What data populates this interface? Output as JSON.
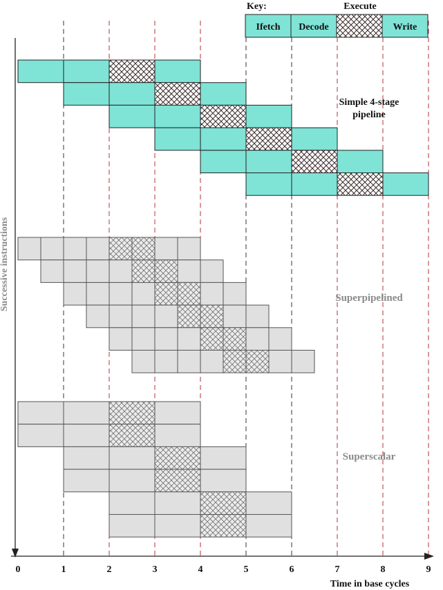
{
  "key": {
    "title": "Key:",
    "execute_label": "Execute",
    "stages": [
      "Ifetch",
      "Decode",
      "",
      "Write"
    ]
  },
  "labels": {
    "simple_line1": "Simple 4-stage",
    "simple_line2": "pipeline",
    "superpipelined": "Superpipelined",
    "superscalar": "Superscalar"
  },
  "axes": {
    "y_label": "Successive instructions",
    "x_label": "Time in base cycles",
    "ticks": [
      "0",
      "1",
      "2",
      "3",
      "4",
      "5",
      "6",
      "7",
      "8",
      "9"
    ]
  },
  "colors": {
    "teal": "#7fe3d6",
    "grey": "#e0e0e0",
    "stroke": "#222222",
    "grey_stroke": "#555555",
    "dash_black": "#333333",
    "dash_red": "#b0303a"
  },
  "pipelines": {
    "simple": {
      "stage_cycles": 1,
      "instructions": [
        {
          "start": 0
        },
        {
          "start": 1
        },
        {
          "start": 2
        },
        {
          "start": 3
        },
        {
          "start": 4
        },
        {
          "start": 5
        }
      ]
    },
    "superpipelined": {
      "stage_cycles": 1,
      "instructions": [
        {
          "start": 0
        },
        {
          "start": 0.5
        },
        {
          "start": 1
        },
        {
          "start": 1.5
        },
        {
          "start": 2
        },
        {
          "start": 2.5
        }
      ]
    },
    "superscalar": {
      "stage_cycles": 1,
      "instructions": [
        {
          "start": 0
        },
        {
          "start": 0
        },
        {
          "start": 1
        },
        {
          "start": 1
        },
        {
          "start": 2
        },
        {
          "start": 2
        }
      ]
    }
  }
}
